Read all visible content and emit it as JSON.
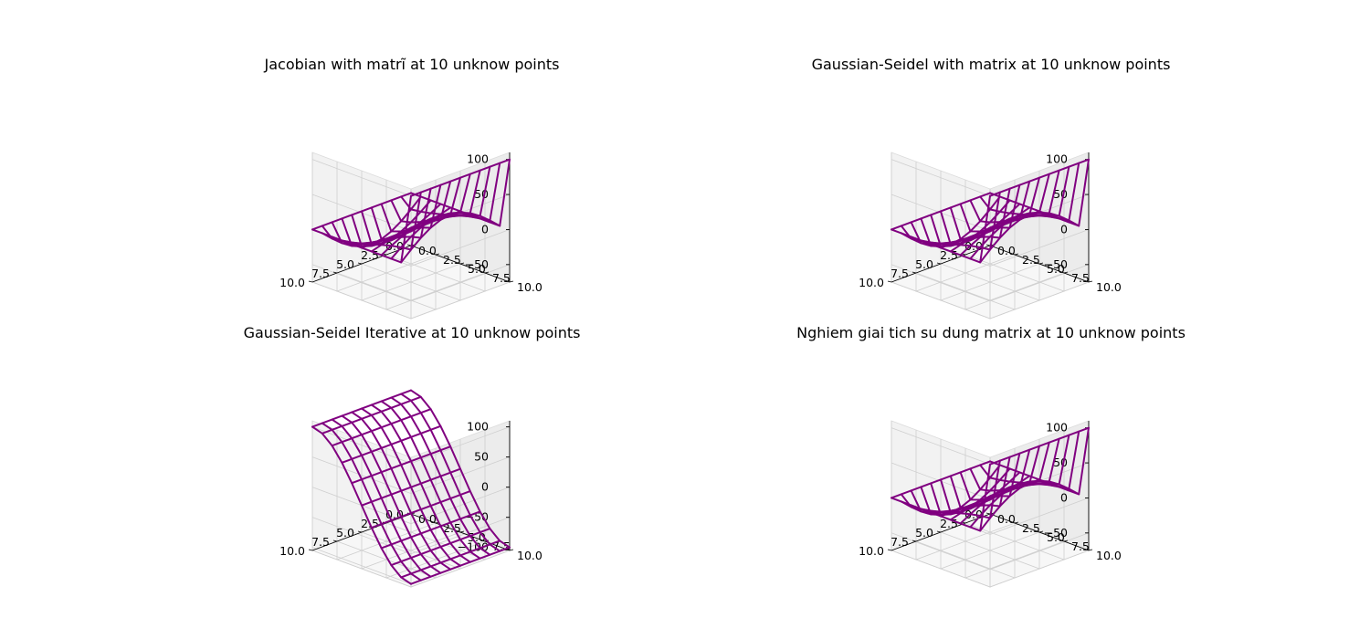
{
  "figure": {
    "background": "#ffffff",
    "wire_color": "#800080"
  },
  "chart_data": [
    {
      "type": "wireframe3d",
      "title": "Jacobian with matrĩ at 10 unknow points",
      "x_range": [
        0,
        10
      ],
      "y_range": [
        0,
        10
      ],
      "z_range": [
        -75,
        110
      ],
      "x_ticks": [
        "0.0",
        "2.5",
        "5.0",
        "7.5",
        "10.0"
      ],
      "y_ticks": [
        "0.0",
        "2.5",
        "5.0",
        "7.5",
        "10.0"
      ],
      "z_ticks": [
        "100",
        "50",
        "0",
        "−50"
      ],
      "z_tick_values": [
        100,
        50,
        0,
        -50
      ],
      "surface": "boundary_wall",
      "wall_height": 100,
      "interior_amplitude": 40
    },
    {
      "type": "wireframe3d",
      "title": "Gaussian-Seidel with matrix at 10 unknow points",
      "x_range": [
        0,
        10
      ],
      "y_range": [
        0,
        10
      ],
      "z_range": [
        -75,
        110
      ],
      "x_ticks": [
        "0.0",
        "2.5",
        "5.0",
        "7.5",
        "10.0"
      ],
      "y_ticks": [
        "0.0",
        "2.5",
        "5.0",
        "7.5",
        "10.0"
      ],
      "z_ticks": [
        "100",
        "50",
        "0",
        "−50"
      ],
      "z_tick_values": [
        100,
        50,
        0,
        -50
      ],
      "surface": "boundary_wall",
      "wall_height": 100,
      "interior_amplitude": 40
    },
    {
      "type": "wireframe3d",
      "title": "Gaussian-Seidel Iterative at 10 unknow points",
      "x_range": [
        0,
        10
      ],
      "y_range": [
        0,
        10
      ],
      "z_range": [
        -105,
        110
      ],
      "x_ticks": [
        "0.0",
        "2.5",
        "5.0",
        "7.5",
        "10.0"
      ],
      "y_ticks": [
        "0.0",
        "2.5",
        "5.0",
        "7.5",
        "10.0"
      ],
      "z_ticks": [
        "100",
        "50",
        "0",
        "−50",
        "−100"
      ],
      "z_tick_values": [
        100,
        50,
        0,
        -50,
        -100
      ],
      "surface": "sine_sheet",
      "amplitude": 100
    },
    {
      "type": "wireframe3d",
      "title": "Nghiem giai tich su dung matrix at 10 unknow points",
      "x_range": [
        0,
        10
      ],
      "y_range": [
        0,
        10
      ],
      "z_range": [
        -75,
        110
      ],
      "x_ticks": [
        "0.0",
        "2.5",
        "5.0",
        "7.5",
        "10.0"
      ],
      "y_ticks": [
        "0.0",
        "2.5",
        "5.0",
        "7.5",
        "10.0"
      ],
      "z_ticks": [
        "100",
        "50",
        "0",
        "−50"
      ],
      "z_tick_values": [
        100,
        50,
        0,
        -50
      ],
      "surface": "boundary_wall",
      "wall_height": 100,
      "interior_amplitude": 40
    }
  ]
}
